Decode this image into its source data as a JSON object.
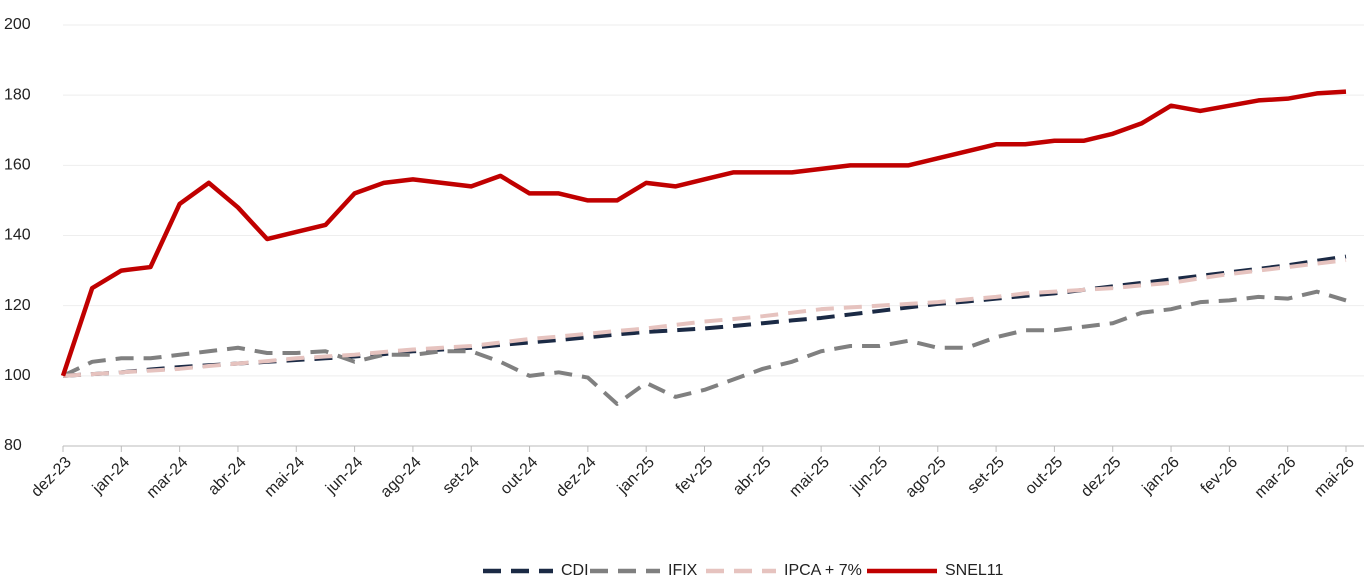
{
  "chart_data": {
    "type": "line",
    "categories": [
      "dez-23",
      null,
      "jan-24",
      null,
      "mar-24",
      null,
      "abr-24",
      null,
      "mai-24",
      null,
      "jun-24",
      null,
      "ago-24",
      null,
      "set-24",
      null,
      "out-24",
      null,
      "dez-24",
      null,
      "jan-25",
      null,
      "fev-25",
      null,
      "abr-25",
      null,
      "mai-25",
      null,
      "jun-25",
      null,
      "ago-25",
      null,
      "set-25",
      null,
      "out-25",
      null,
      "dez-25",
      null,
      "jan-26",
      null,
      "fev-26",
      null,
      "mar-26",
      null,
      "mai-26"
    ],
    "series": [
      {
        "name": "CDI",
        "color": "#1b2a45",
        "dash": true,
        "values": [
          100,
          100.5,
          101,
          101.8,
          102.5,
          103,
          103.5,
          104,
          104.5,
          105,
          105.5,
          106.2,
          107,
          107.5,
          108,
          108.8,
          109.5,
          110.2,
          111,
          111.8,
          112.5,
          113,
          113.5,
          114.2,
          115,
          115.8,
          116.5,
          117.5,
          118.5,
          119.5,
          120.5,
          121.2,
          122,
          122.8,
          123.5,
          124.5,
          125.5,
          126.5,
          127.5,
          128.5,
          129.5,
          130.5,
          131.5,
          132.8,
          134
        ]
      },
      {
        "name": "IFIX",
        "color": "#808080",
        "dash": true,
        "values": [
          100,
          104,
          105,
          105,
          106,
          107,
          108,
          106.5,
          106.5,
          107,
          104,
          106,
          106,
          107,
          107,
          104,
          100,
          101,
          99.5,
          92,
          98,
          94,
          96,
          99,
          102,
          104,
          107,
          108.5,
          108.5,
          110,
          108,
          108,
          111,
          113,
          113,
          114,
          115,
          118,
          119,
          121,
          121.5,
          122.5,
          122,
          124,
          121.5
        ]
      },
      {
        "name": "IPCA + 7%",
        "color": "#e6c3bf",
        "dash": true,
        "values": [
          100,
          100.5,
          101,
          101.5,
          102,
          102.8,
          103.5,
          104.2,
          105,
          105.5,
          106,
          106.8,
          107.5,
          108,
          108.5,
          109.5,
          110.5,
          111.2,
          112,
          112.8,
          113.5,
          114.5,
          115.5,
          116.2,
          117,
          118,
          119,
          119.5,
          120,
          120.5,
          121,
          121.8,
          122.5,
          123.5,
          124,
          124.5,
          125,
          125.8,
          126.5,
          127.8,
          129,
          130,
          131,
          132,
          133
        ]
      },
      {
        "name": "SNEL11",
        "color": "#c00000",
        "dash": false,
        "values": [
          100,
          125,
          130,
          131,
          149,
          155,
          148,
          139,
          141,
          143,
          152,
          155,
          156,
          155,
          154,
          157,
          152,
          152,
          150,
          150,
          155,
          154,
          156,
          158,
          158,
          158,
          159,
          160,
          160,
          160,
          162,
          164,
          166,
          166,
          167,
          167,
          169,
          172,
          177,
          175.5,
          177,
          178.5,
          179,
          180.5,
          181
        ]
      }
    ],
    "ylim": [
      80,
      200
    ],
    "yticks": [
      80,
      100,
      120,
      140,
      160,
      180,
      200
    ],
    "grid": true,
    "legend": "bottom"
  }
}
